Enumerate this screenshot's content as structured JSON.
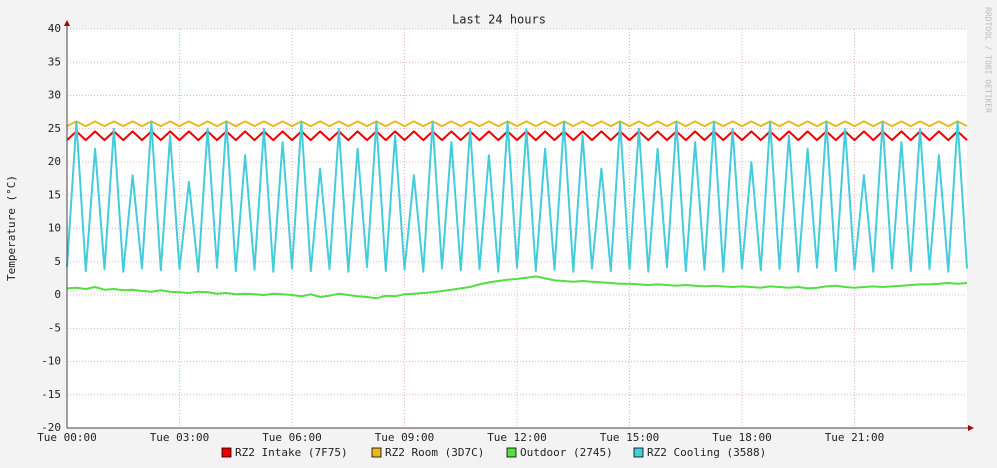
{
  "chart_data": {
    "type": "line",
    "title": "Last 24 hours",
    "y_label": "Temperature (°C)",
    "watermark": "RRDTOOL / TOBI OETIKER",
    "xlim": [
      0,
      24
    ],
    "xticks": [
      {
        "value": 0,
        "label": "Tue 00:00"
      },
      {
        "value": 3,
        "label": "Tue 03:00"
      },
      {
        "value": 6,
        "label": "Tue 06:00"
      },
      {
        "value": 9,
        "label": "Tue 09:00"
      },
      {
        "value": 12,
        "label": "Tue 12:00"
      },
      {
        "value": 15,
        "label": "Tue 15:00"
      },
      {
        "value": 18,
        "label": "Tue 18:00"
      },
      {
        "value": 21,
        "label": "Tue 21:00"
      }
    ],
    "ylim": [
      -20,
      40
    ],
    "yticks": [
      -20,
      -15,
      -10,
      -5,
      0,
      5,
      10,
      15,
      20,
      25,
      30,
      35,
      40
    ],
    "grid": true,
    "legend": "bottom",
    "x": [
      0,
      0.25,
      0.5,
      0.75,
      1,
      1.25,
      1.5,
      1.75,
      2,
      2.25,
      2.5,
      2.75,
      3,
      3.25,
      3.5,
      3.75,
      4,
      4.25,
      4.5,
      4.75,
      5,
      5.25,
      5.5,
      5.75,
      6,
      6.25,
      6.5,
      6.75,
      7,
      7.25,
      7.5,
      7.75,
      8,
      8.25,
      8.5,
      8.75,
      9,
      9.25,
      9.5,
      9.75,
      10,
      10.25,
      10.5,
      10.75,
      11,
      11.25,
      11.5,
      11.75,
      12,
      12.25,
      12.5,
      12.75,
      13,
      13.25,
      13.5,
      13.75,
      14,
      14.25,
      14.5,
      14.75,
      15,
      15.25,
      15.5,
      15.75,
      16,
      16.25,
      16.5,
      16.75,
      17,
      17.25,
      17.5,
      17.75,
      18,
      18.25,
      18.5,
      18.75,
      19,
      19.25,
      19.5,
      19.75,
      20,
      20.25,
      20.5,
      20.75,
      21,
      21.25,
      21.5,
      21.75,
      22,
      22.25,
      22.5,
      22.75,
      23,
      23.25,
      23.5,
      23.75,
      24
    ],
    "series": [
      {
        "name": "RZ2 Intake (7F75)",
        "color": "#ee0000",
        "values": [
          23.3,
          24.6,
          23.3,
          24.6,
          23.3,
          24.6,
          23.3,
          24.6,
          23.3,
          24.6,
          23.3,
          24.6,
          23.3,
          24.6,
          23.3,
          24.6,
          23.3,
          24.6,
          23.3,
          24.6,
          23.3,
          24.6,
          23.3,
          24.6,
          23.3,
          24.6,
          23.3,
          24.6,
          23.3,
          24.6,
          23.3,
          24.6,
          23.3,
          24.6,
          23.3,
          24.6,
          23.3,
          24.6,
          23.3,
          24.6,
          23.3,
          24.6,
          23.3,
          24.6,
          23.3,
          24.6,
          23.3,
          24.6,
          23.3,
          24.6,
          23.3,
          24.6,
          23.3,
          24.6,
          23.3,
          24.6,
          23.3,
          24.6,
          23.3,
          24.6,
          23.3,
          24.6,
          23.3,
          24.6,
          23.3,
          24.6,
          23.3,
          24.6,
          23.3,
          24.6,
          23.3,
          24.6,
          23.3,
          24.6,
          23.3,
          24.6,
          23.3,
          24.6,
          23.3,
          24.6,
          23.3,
          24.6,
          23.3,
          24.6,
          23.3,
          24.6,
          23.3,
          24.6,
          23.3,
          24.6,
          23.3,
          24.6,
          23.3,
          24.6,
          23.3,
          24.6,
          23.3
        ]
      },
      {
        "name": "RZ2 Room (3D7C)",
        "color": "#e8b820",
        "values": [
          25.4,
          26.1,
          25.4,
          26.1,
          25.4,
          26.1,
          25.4,
          26.1,
          25.4,
          26.1,
          25.4,
          26.1,
          25.4,
          26.1,
          25.4,
          26.1,
          25.4,
          26.1,
          25.4,
          26.1,
          25.4,
          26.1,
          25.4,
          26.1,
          25.4,
          26.1,
          25.4,
          26.1,
          25.4,
          26.1,
          25.4,
          26.1,
          25.4,
          26.1,
          25.4,
          26.1,
          25.4,
          26.1,
          25.4,
          26.1,
          25.4,
          26.1,
          25.4,
          26.1,
          25.4,
          26.1,
          25.4,
          26.1,
          25.4,
          26.1,
          25.4,
          26.1,
          25.4,
          26.1,
          25.4,
          26.1,
          25.4,
          26.1,
          25.4,
          26.1,
          25.4,
          26.1,
          25.4,
          26.1,
          25.4,
          26.1,
          25.4,
          26.1,
          25.4,
          26.1,
          25.4,
          26.1,
          25.4,
          26.1,
          25.4,
          26.1,
          25.4,
          26.1,
          25.4,
          26.1,
          25.4,
          26.1,
          25.4,
          26.1,
          25.4,
          26.1,
          25.4,
          26.1,
          25.4,
          26.1,
          25.4,
          26.1,
          25.4,
          26.1,
          25.4,
          26.1,
          25.4
        ]
      },
      {
        "name": "Outdoor (2745)",
        "color": "#55dd44",
        "values": [
          1.0,
          1.1,
          0.9,
          1.2,
          0.8,
          0.9,
          0.7,
          0.8,
          0.6,
          0.5,
          0.7,
          0.5,
          0.4,
          0.3,
          0.5,
          0.4,
          0.2,
          0.3,
          0.1,
          0.2,
          0.1,
          0.0,
          0.2,
          0.1,
          0.0,
          -0.2,
          0.1,
          -0.3,
          -0.1,
          0.2,
          0.0,
          -0.2,
          -0.3,
          -0.5,
          -0.1,
          -0.2,
          0.1,
          0.2,
          0.3,
          0.4,
          0.6,
          0.8,
          1.0,
          1.2,
          1.6,
          1.9,
          2.1,
          2.3,
          2.4,
          2.6,
          2.8,
          2.5,
          2.2,
          2.1,
          2.0,
          2.1,
          2.0,
          1.9,
          1.8,
          1.7,
          1.7,
          1.6,
          1.5,
          1.6,
          1.5,
          1.4,
          1.5,
          1.4,
          1.3,
          1.4,
          1.3,
          1.2,
          1.3,
          1.2,
          1.1,
          1.3,
          1.2,
          1.1,
          1.2,
          1.0,
          1.1,
          1.3,
          1.4,
          1.2,
          1.1,
          1.2,
          1.3,
          1.2,
          1.3,
          1.4,
          1.5,
          1.6,
          1.6,
          1.7,
          1.8,
          1.7,
          1.8
        ]
      },
      {
        "name": "RZ2 Cooling (3588)",
        "color": "#44ccdd",
        "values": [
          4.2,
          26,
          3.6,
          22,
          3.9,
          25,
          3.5,
          18,
          4.0,
          26,
          3.7,
          24,
          3.9,
          17,
          3.5,
          25,
          4.1,
          26,
          3.6,
          21,
          3.8,
          25,
          3.5,
          23,
          4.0,
          26,
          3.6,
          19,
          3.9,
          25,
          3.5,
          22,
          4.2,
          26,
          3.6,
          24,
          3.8,
          18,
          3.5,
          26,
          4.0,
          23,
          3.7,
          25,
          3.9,
          21,
          3.5,
          26,
          4.1,
          25,
          3.6,
          22,
          3.8,
          26,
          3.5,
          24,
          4.0,
          19,
          3.6,
          26,
          3.9,
          25,
          3.5,
          22,
          4.2,
          26,
          3.6,
          23,
          3.8,
          26,
          3.5,
          25,
          4.0,
          20,
          3.7,
          26,
          3.9,
          24,
          3.5,
          22,
          4.1,
          26,
          3.6,
          25,
          3.8,
          18,
          3.5,
          26,
          4.0,
          23,
          3.6,
          25,
          3.9,
          21,
          3.5,
          26,
          4.0
        ]
      }
    ]
  }
}
